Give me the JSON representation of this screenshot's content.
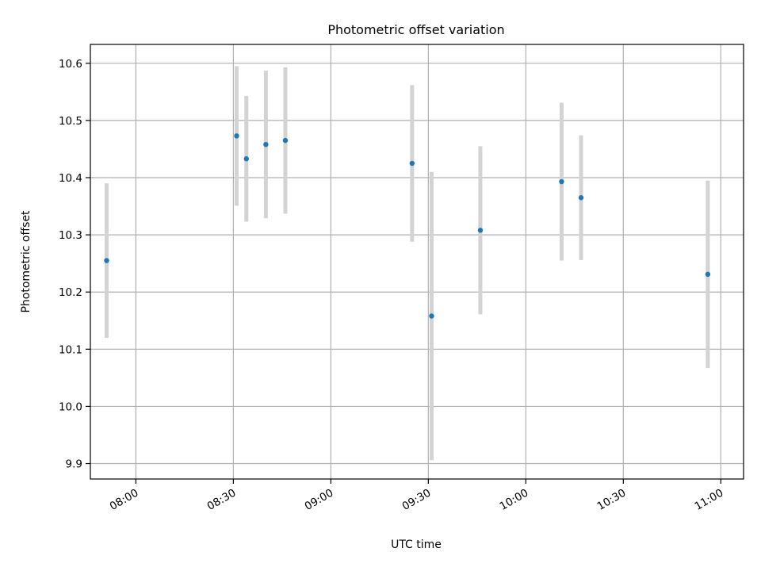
{
  "chart_data": {
    "type": "scatter",
    "title": "Photometric offset variation",
    "xlabel": "UTC time",
    "ylabel": "Photometric offset",
    "x_axis_type": "time",
    "xlim": [
      "07:46",
      "11:07"
    ],
    "ylim": [
      9.873,
      10.633
    ],
    "xticks": [
      "08:00",
      "08:30",
      "09:00",
      "09:30",
      "10:00",
      "10:30",
      "11:00"
    ],
    "yticks": [
      9.9,
      10.0,
      10.1,
      10.2,
      10.3,
      10.4,
      10.5,
      10.6
    ],
    "ytick_labels": [
      "9.9",
      "10.0",
      "10.1",
      "10.2",
      "10.3",
      "10.4",
      "10.5",
      "10.6"
    ],
    "grid": true,
    "point_color": "#1f77b4",
    "errorbar_color": "#d3d3d3",
    "series": [
      {
        "points": [
          {
            "x": "07:51",
            "y": 10.255,
            "err": 0.135
          },
          {
            "x": "08:31",
            "y": 10.473,
            "err": 0.122
          },
          {
            "x": "08:34",
            "y": 10.433,
            "err": 0.11
          },
          {
            "x": "08:40",
            "y": 10.458,
            "err": 0.129
          },
          {
            "x": "08:46",
            "y": 10.465,
            "err": 0.128
          },
          {
            "x": "09:25",
            "y": 10.425,
            "err": 0.137
          },
          {
            "x": "09:31",
            "y": 10.158,
            "err": 0.252
          },
          {
            "x": "09:46",
            "y": 10.308,
            "err": 0.147
          },
          {
            "x": "10:11",
            "y": 10.393,
            "err": 0.138
          },
          {
            "x": "10:17",
            "y": 10.365,
            "err": 0.109
          },
          {
            "x": "10:56",
            "y": 10.231,
            "err": 0.164
          }
        ]
      }
    ]
  }
}
